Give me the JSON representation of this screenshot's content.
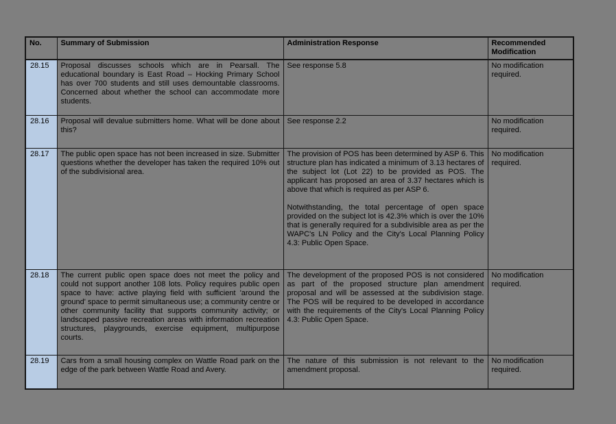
{
  "page": {
    "background_color": "#7f7f7f",
    "row_number_bg_color": "#b8cce4",
    "border_color": "#141414"
  },
  "table": {
    "headers": {
      "no": "No.",
      "summary": "Summary of Submission",
      "response": "Administration Response",
      "modification": "Recommended Modification"
    },
    "rows": [
      {
        "no": "28.15",
        "summary": [
          "Proposal discusses schools which are in Pearsall.  The educational boundary is East Road – Hocking Primary School has over 700 students and still uses demountable classrooms.  Concerned about whether the school can accommodate more students."
        ],
        "response": [
          "See response 5.8"
        ],
        "modification": "No modification required."
      },
      {
        "no": "28.16",
        "summary": [
          "Proposal will devalue submitters home.  What will be done about this?"
        ],
        "response": [
          "See response 2.2"
        ],
        "modification": "No modification required."
      },
      {
        "no": "28.17",
        "summary": [
          "The public open space has not been increased in size. Submitter questions whether the developer has taken the required 10% out of the subdivisional area."
        ],
        "response": [
          "The provision of POS has been determined by ASP 6. This structure plan has indicated a minimum of 3.13 hectares of the subject lot (Lot 22) to be provided as POS. The applicant has proposed an area of 3.37 hectares which is above that which is required as per ASP 6.",
          "Notwithstanding, the total percentage of open space provided on the subject lot is 42.3% which is over the 10% that is generally required for a subdivisible area as per the WAPC's LN Policy and the City's Local Planning Policy 4.3: Public Open Space."
        ],
        "modification": "No modification required."
      },
      {
        "no": "28.18",
        "summary": [
          "The current public open space does not meet the policy and could not support another 108 lots.  Policy requires public open space to have: active playing field with sufficient 'around the ground' space to permit simultaneous use; a community centre or other community facility that supports community activity; or landscaped passive recreation areas with information recreation structures, playgrounds, exercise equipment, multipurpose courts."
        ],
        "response": [
          "The development of the proposed POS is not considered as part of the proposed structure plan amendment proposal and will be assessed at the subdivision stage. The POS will be required to be developed in accordance with the requirements of the City's Local Planning Policy 4.3: Public Open Space."
        ],
        "modification": "No modification required."
      },
      {
        "no": "28.19",
        "summary": [
          "Cars from a small housing complex on Wattle Road park on the edge of the park between Wattle Road and Avery."
        ],
        "response": [
          "The nature of this submission is not relevant to the amendment proposal."
        ],
        "modification": "No modification required."
      }
    ]
  }
}
